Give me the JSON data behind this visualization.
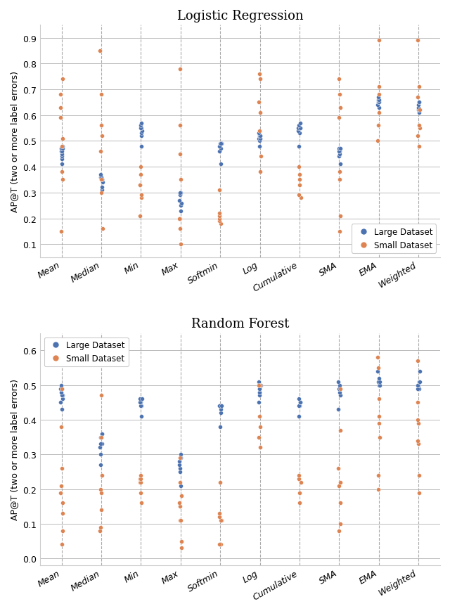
{
  "title1": "Logistic Regression",
  "title2": "Random Forest",
  "ylabel": "AP@T (two or more label errors)",
  "categories": [
    "Mean",
    "Median",
    "Min",
    "Max",
    "Softmin",
    "Log",
    "Cumulative",
    "SMA",
    "EMA",
    "Weighted"
  ],
  "blue_color": "#4C72B0",
  "orange_color": "#DD8452",
  "legend_large": "Large Dataset",
  "legend_small": "Small Dataset",
  "lr_blue": [
    [
      0.41,
      0.43,
      0.44,
      0.45,
      0.46,
      0.46,
      0.47,
      0.47,
      0.48
    ],
    [
      0.31,
      0.32,
      0.34,
      0.35,
      0.35,
      0.35,
      0.36,
      0.36,
      0.37
    ],
    [
      0.48,
      0.52,
      0.53,
      0.54,
      0.55,
      0.55,
      0.56,
      0.57
    ],
    [
      0.23,
      0.25,
      0.26,
      0.27,
      0.29,
      0.29,
      0.3,
      0.3
    ],
    [
      0.41,
      0.46,
      0.47,
      0.48,
      0.49,
      0.49,
      0.49,
      0.49
    ],
    [
      0.48,
      0.5,
      0.51,
      0.51,
      0.52,
      0.52,
      0.52,
      0.53
    ],
    [
      0.48,
      0.53,
      0.54,
      0.55,
      0.55,
      0.55,
      0.56,
      0.57
    ],
    [
      0.41,
      0.44,
      0.45,
      0.46,
      0.46,
      0.47,
      0.47,
      0.47
    ],
    [
      0.63,
      0.64,
      0.65,
      0.65,
      0.66,
      0.66,
      0.67
    ],
    [
      0.61,
      0.62,
      0.62,
      0.63,
      0.64,
      0.65,
      0.65
    ]
  ],
  "lr_orange": [
    [
      0.15,
      0.35,
      0.38,
      0.48,
      0.51,
      0.59,
      0.63,
      0.68,
      0.74
    ],
    [
      0.16,
      0.3,
      0.35,
      0.46,
      0.52,
      0.56,
      0.68,
      0.85
    ],
    [
      0.21,
      0.28,
      0.29,
      0.33,
      0.33,
      0.37,
      0.4
    ],
    [
      0.1,
      0.16,
      0.2,
      0.2,
      0.35,
      0.45,
      0.56,
      0.78
    ],
    [
      0.18,
      0.19,
      0.2,
      0.21,
      0.22,
      0.31
    ],
    [
      0.38,
      0.44,
      0.54,
      0.61,
      0.65,
      0.74,
      0.76
    ],
    [
      0.28,
      0.29,
      0.33,
      0.35,
      0.37,
      0.4
    ],
    [
      0.15,
      0.21,
      0.35,
      0.38,
      0.59,
      0.63,
      0.68,
      0.74
    ],
    [
      0.5,
      0.56,
      0.61,
      0.68,
      0.71,
      0.89
    ],
    [
      0.48,
      0.52,
      0.55,
      0.56,
      0.62,
      0.67,
      0.71,
      0.89
    ]
  ],
  "rf_blue": [
    [
      0.43,
      0.45,
      0.46,
      0.47,
      0.47,
      0.48,
      0.49,
      0.49,
      0.5
    ],
    [
      0.27,
      0.3,
      0.32,
      0.33,
      0.33,
      0.35,
      0.36,
      0.36
    ],
    [
      0.41,
      0.44,
      0.44,
      0.45,
      0.45,
      0.46,
      0.46
    ],
    [
      0.21,
      0.25,
      0.26,
      0.27,
      0.28,
      0.29,
      0.29,
      0.3
    ],
    [
      0.38,
      0.42,
      0.43,
      0.44,
      0.44,
      0.44,
      0.44,
      0.44
    ],
    [
      0.45,
      0.47,
      0.48,
      0.48,
      0.49,
      0.49,
      0.5,
      0.5,
      0.51
    ],
    [
      0.41,
      0.44,
      0.44,
      0.45,
      0.45,
      0.45,
      0.45,
      0.46
    ],
    [
      0.43,
      0.47,
      0.48,
      0.49,
      0.49,
      0.5,
      0.51
    ],
    [
      0.5,
      0.5,
      0.5,
      0.51,
      0.51,
      0.52,
      0.54
    ],
    [
      0.49,
      0.49,
      0.5,
      0.5,
      0.5,
      0.51,
      0.51,
      0.54
    ]
  ],
  "rf_orange": [
    [
      0.04,
      0.08,
      0.13,
      0.16,
      0.19,
      0.21,
      0.26,
      0.38,
      0.49
    ],
    [
      0.08,
      0.09,
      0.14,
      0.19,
      0.2,
      0.24,
      0.35,
      0.47
    ],
    [
      0.16,
      0.19,
      0.22,
      0.22,
      0.23,
      0.23,
      0.24
    ],
    [
      0.03,
      0.05,
      0.11,
      0.11,
      0.15,
      0.16,
      0.18,
      0.22,
      0.29
    ],
    [
      0.04,
      0.04,
      0.11,
      0.11,
      0.12,
      0.13,
      0.22
    ],
    [
      0.32,
      0.35,
      0.38,
      0.41,
      0.5,
      0.5
    ],
    [
      0.16,
      0.19,
      0.22,
      0.23,
      0.23,
      0.24
    ],
    [
      0.08,
      0.1,
      0.16,
      0.21,
      0.22,
      0.26,
      0.37,
      0.49
    ],
    [
      0.2,
      0.24,
      0.35,
      0.39,
      0.41,
      0.46,
      0.55,
      0.58
    ],
    [
      0.19,
      0.24,
      0.33,
      0.34,
      0.39,
      0.4,
      0.45,
      0.57
    ]
  ],
  "lr_ylim": [
    0.05,
    0.95
  ],
  "lr_yticks": [
    0.1,
    0.2,
    0.3,
    0.4,
    0.5,
    0.6,
    0.7,
    0.8,
    0.9
  ],
  "rf_ylim": [
    -0.02,
    0.65
  ],
  "rf_yticks": [
    0.0,
    0.1,
    0.2,
    0.3,
    0.4,
    0.5,
    0.6
  ],
  "grid_color": "#bbbbbb",
  "vline_color": "#aaaaaa",
  "spine_color": "#cccccc"
}
